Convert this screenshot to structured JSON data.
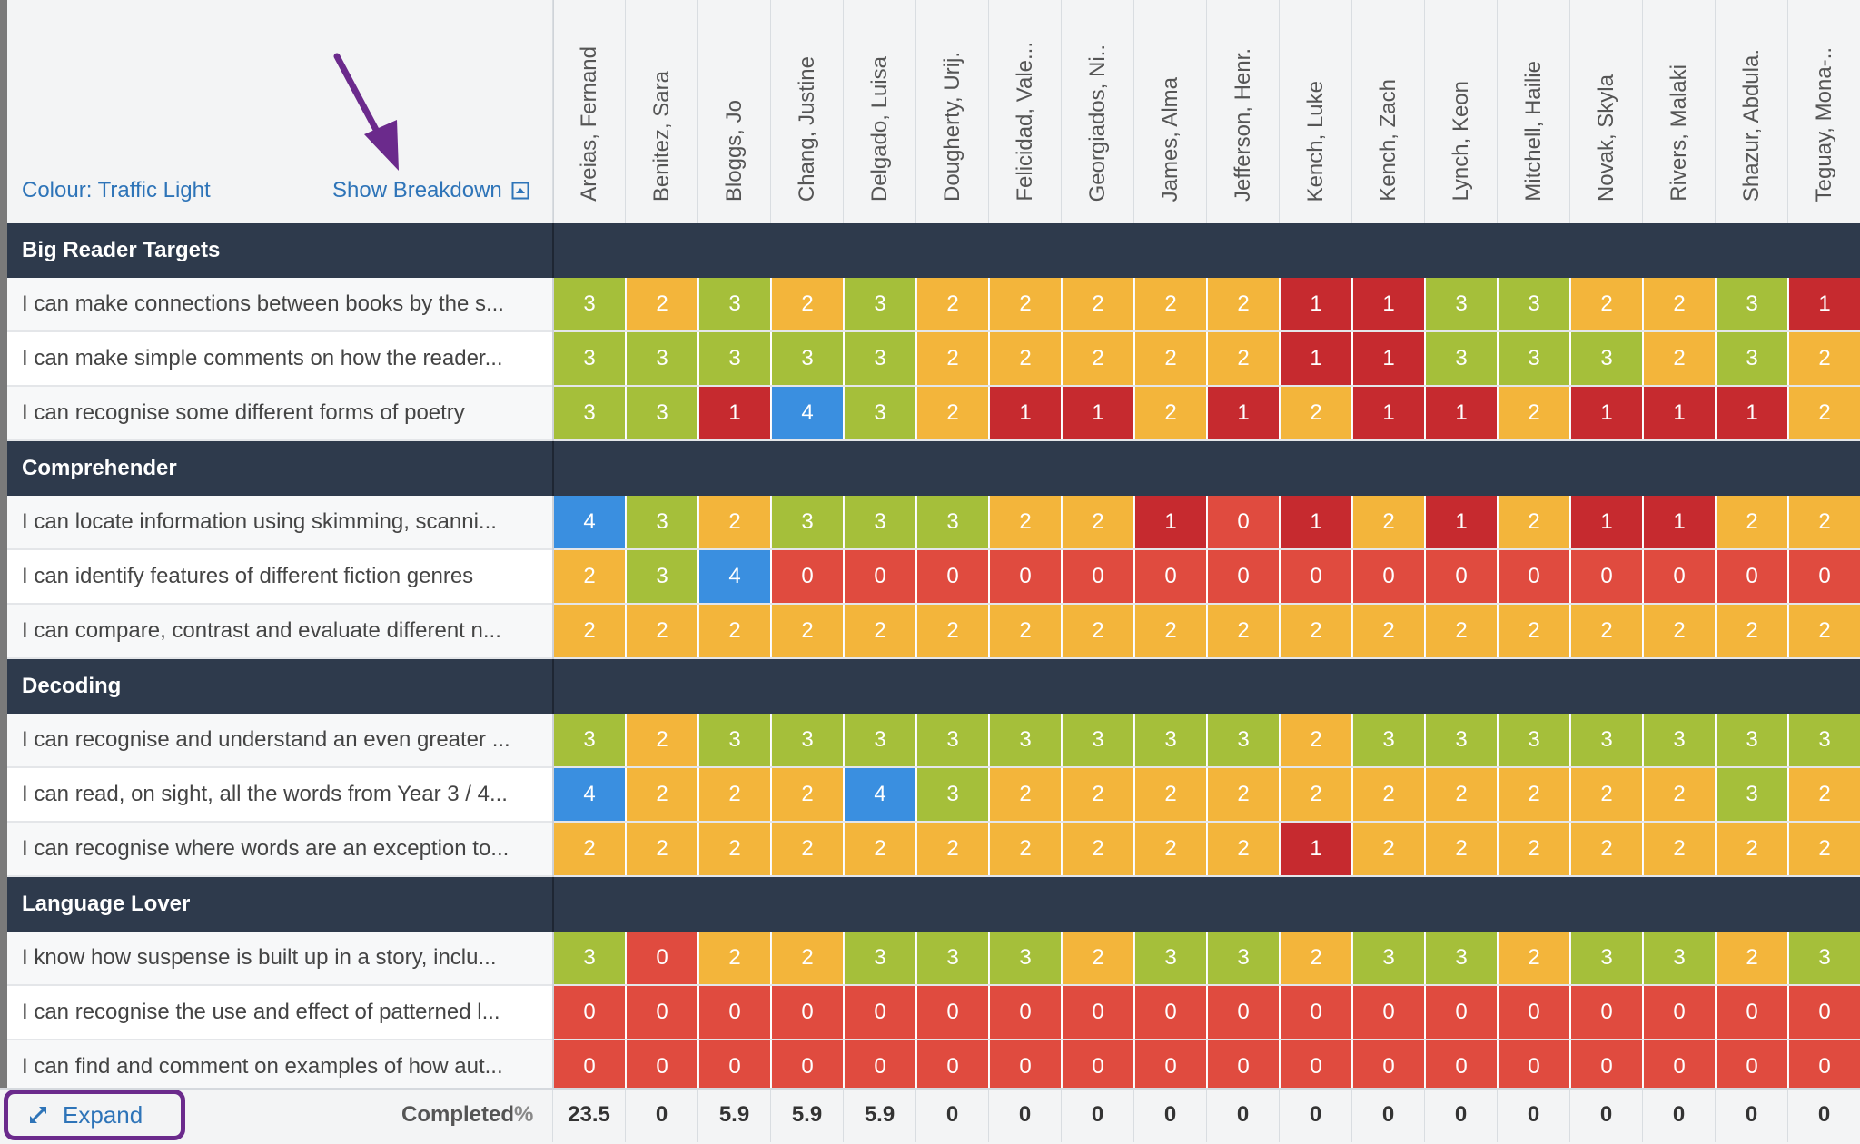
{
  "header": {
    "colour_label": "Colour: Traffic Light",
    "breakdown_label": "Show Breakdown"
  },
  "students": [
    "Areias, Fernand",
    "Benitez, Sara",
    "Bloggs, Jo",
    "Chang, Justine",
    "Delgado, Luisa",
    "Dougherty, Urij.",
    "Felicidad, Vale...",
    "Georgiados, Ni..",
    "James, Alma",
    "Jefferson, Henr.",
    "Kench, Luke",
    "Kench, Zach",
    "Lynch, Keon",
    "Mitchell, Hailie",
    "Novak, Skyla",
    "Rivers, Malaki",
    "Shazur, Abdula.",
    "Teguay, Mona-.."
  ],
  "colors": {
    "0": "#e04b3f",
    "1": "#c62a2f",
    "2": "#f3b53b",
    "3": "#a5bf3a",
    "4": "#3a8fe0"
  },
  "groups": [
    {
      "title": "Big Reader Targets",
      "rows": [
        {
          "label": "I can make connections between books by the s...",
          "scores": [
            3,
            2,
            3,
            2,
            3,
            2,
            2,
            2,
            2,
            2,
            1,
            1,
            3,
            3,
            2,
            2,
            3,
            1
          ]
        },
        {
          "label": "I can make simple comments on how the reader...",
          "scores": [
            3,
            3,
            3,
            3,
            3,
            2,
            2,
            2,
            2,
            2,
            1,
            1,
            3,
            3,
            3,
            2,
            3,
            2
          ]
        },
        {
          "label": "I can recognise some different forms of poetry",
          "scores": [
            3,
            3,
            1,
            4,
            3,
            2,
            1,
            1,
            2,
            1,
            2,
            1,
            1,
            2,
            1,
            1,
            1,
            2
          ]
        }
      ]
    },
    {
      "title": "Comprehender",
      "rows": [
        {
          "label": "I can locate information using skimming, scanni...",
          "scores": [
            4,
            3,
            2,
            3,
            3,
            3,
            2,
            2,
            1,
            0,
            1,
            2,
            1,
            2,
            1,
            1,
            2,
            2
          ]
        },
        {
          "label": "I can identify features of different fiction genres",
          "scores": [
            2,
            3,
            4,
            0,
            0,
            0,
            0,
            0,
            0,
            0,
            0,
            0,
            0,
            0,
            0,
            0,
            0,
            0
          ]
        },
        {
          "label": "I can compare, contrast and evaluate different n...",
          "scores": [
            2,
            2,
            2,
            2,
            2,
            2,
            2,
            2,
            2,
            2,
            2,
            2,
            2,
            2,
            2,
            2,
            2,
            2
          ]
        }
      ]
    },
    {
      "title": "Decoding",
      "rows": [
        {
          "label": "I can recognise and understand an even greater ...",
          "scores": [
            3,
            2,
            3,
            3,
            3,
            3,
            3,
            3,
            3,
            3,
            2,
            3,
            3,
            3,
            3,
            3,
            3,
            3
          ]
        },
        {
          "label": "I can read, on sight, all the words from Year 3 / 4...",
          "scores": [
            4,
            2,
            2,
            2,
            4,
            3,
            2,
            2,
            2,
            2,
            2,
            2,
            2,
            2,
            2,
            2,
            3,
            2
          ]
        },
        {
          "label": "I can recognise where words are an exception to...",
          "scores": [
            2,
            2,
            2,
            2,
            2,
            2,
            2,
            2,
            2,
            2,
            1,
            2,
            2,
            2,
            2,
            2,
            2,
            2
          ]
        }
      ]
    },
    {
      "title": "Language Lover",
      "rows": [
        {
          "label": "I know how suspense is built up in a story, inclu...",
          "scores": [
            3,
            0,
            2,
            2,
            3,
            3,
            3,
            2,
            3,
            3,
            2,
            3,
            3,
            2,
            3,
            3,
            2,
            3
          ]
        },
        {
          "label": "I can recognise the use and effect of patterned l...",
          "scores": [
            0,
            0,
            0,
            0,
            0,
            0,
            0,
            0,
            0,
            0,
            0,
            0,
            0,
            0,
            0,
            0,
            0,
            0
          ]
        },
        {
          "label": "I can find and comment on examples of how aut...",
          "scores": [
            0,
            0,
            0,
            0,
            0,
            0,
            0,
            0,
            0,
            0,
            0,
            0,
            0,
            0,
            0,
            0,
            0,
            0
          ]
        }
      ]
    }
  ],
  "footer": {
    "expand_label": "Expand",
    "completed_label": "Completed",
    "completed_suffix": "%",
    "completed_values": [
      "23.5",
      "0",
      "5.9",
      "5.9",
      "5.9",
      "0",
      "0",
      "0",
      "0",
      "0",
      "0",
      "0",
      "0",
      "0",
      "0",
      "0",
      "0",
      "0"
    ]
  }
}
